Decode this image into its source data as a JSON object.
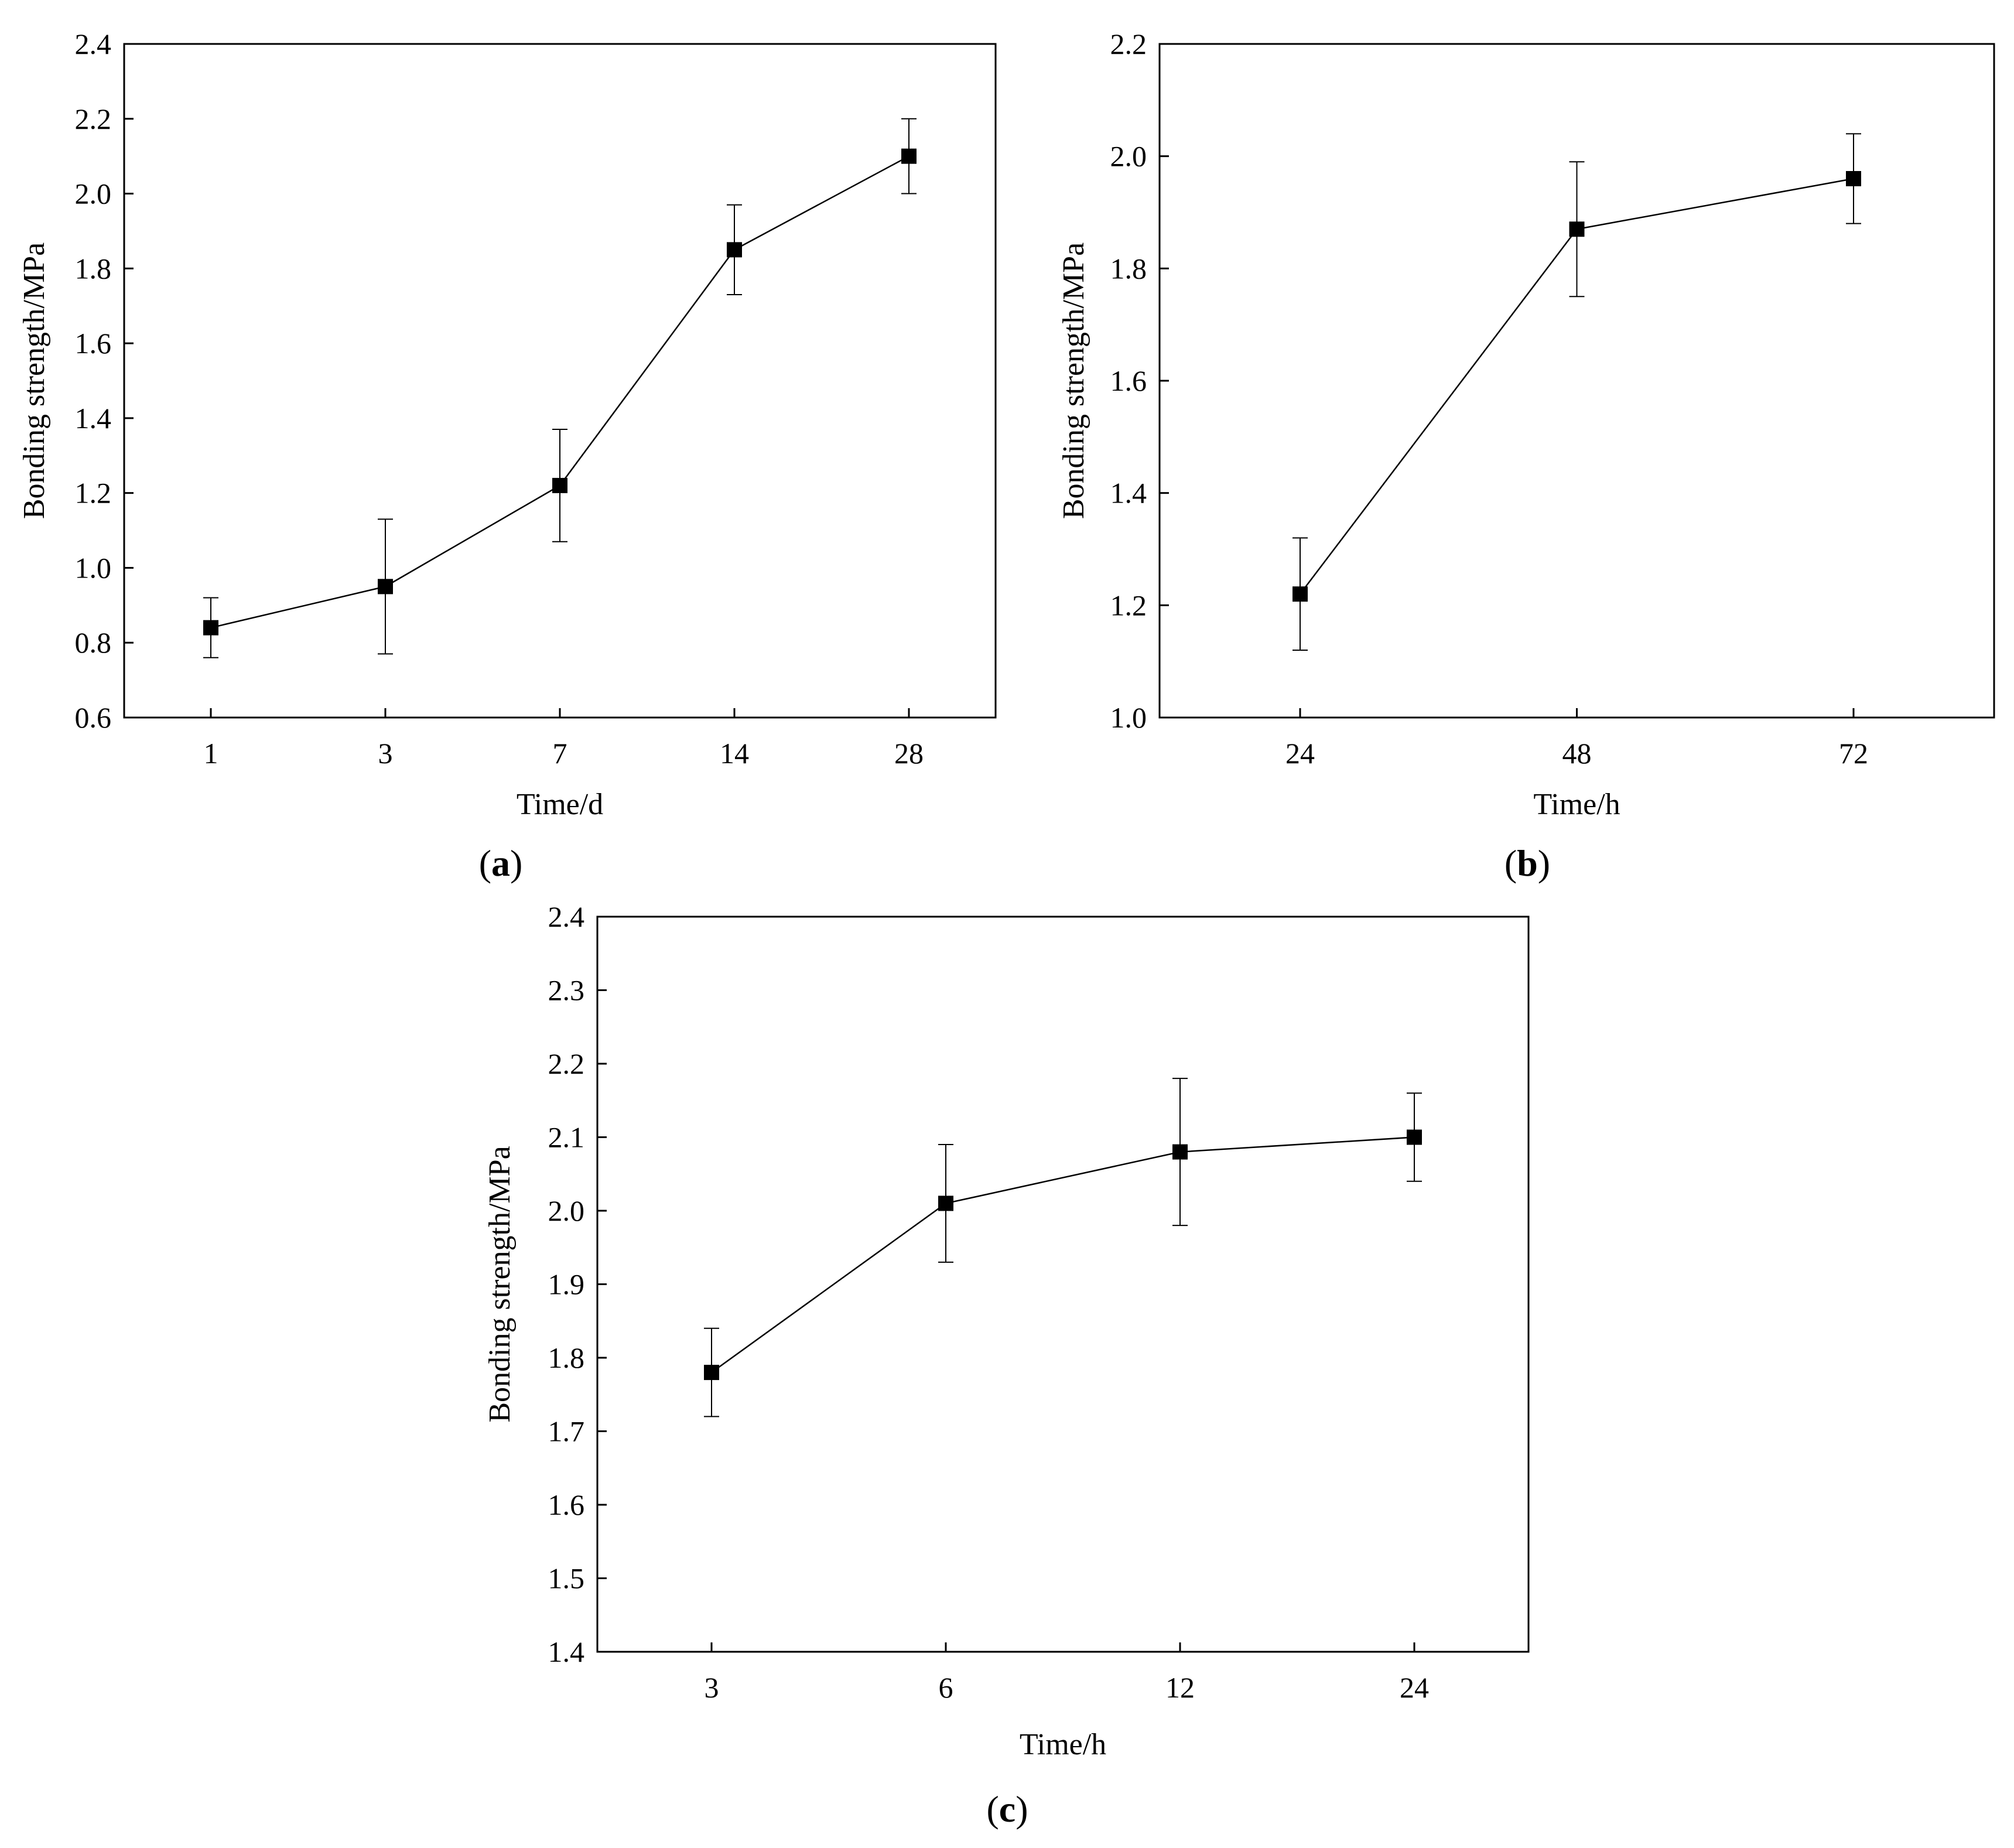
{
  "chart_data": [
    {
      "panel_label": "a",
      "type": "line",
      "xlabel": "Time/d",
      "ylabel": "Bonding strength/MPa",
      "categories": [
        "1",
        "3",
        "7",
        "14",
        "28"
      ],
      "values": [
        0.84,
        0.95,
        1.22,
        1.85,
        2.1
      ],
      "errors": [
        0.08,
        0.18,
        0.15,
        0.12,
        0.1
      ],
      "ylim": [
        0.6,
        2.4
      ],
      "yticks": [
        "0.6",
        "0.8",
        "1.0",
        "1.2",
        "1.4",
        "1.6",
        "1.8",
        "2.0",
        "2.2",
        "2.4"
      ],
      "grid": false,
      "marker": "square",
      "color": "#000000"
    },
    {
      "panel_label": "b",
      "type": "line",
      "xlabel": "Time/h",
      "ylabel": "Bonding strength/MPa",
      "categories": [
        "24",
        "48",
        "72"
      ],
      "values": [
        1.22,
        1.87,
        1.96
      ],
      "errors": [
        0.1,
        0.12,
        0.08
      ],
      "ylim": [
        1.0,
        2.2
      ],
      "yticks": [
        "1.0",
        "1.2",
        "1.4",
        "1.6",
        "1.8",
        "2.0",
        "2.2"
      ],
      "grid": false,
      "marker": "square",
      "color": "#000000"
    },
    {
      "panel_label": "c",
      "type": "line",
      "xlabel": "Time/h",
      "ylabel": "Bonding strength/MPa",
      "categories": [
        "3",
        "6",
        "12",
        "24"
      ],
      "values": [
        1.78,
        2.01,
        2.08,
        2.1
      ],
      "errors": [
        0.06,
        0.08,
        0.1,
        0.06
      ],
      "ylim": [
        1.4,
        2.4
      ],
      "yticks": [
        "1.4",
        "1.5",
        "1.6",
        "1.7",
        "1.8",
        "1.9",
        "2.0",
        "2.1",
        "2.2",
        "2.3",
        "2.4"
      ],
      "grid": false,
      "marker": "square",
      "color": "#000000"
    }
  ]
}
